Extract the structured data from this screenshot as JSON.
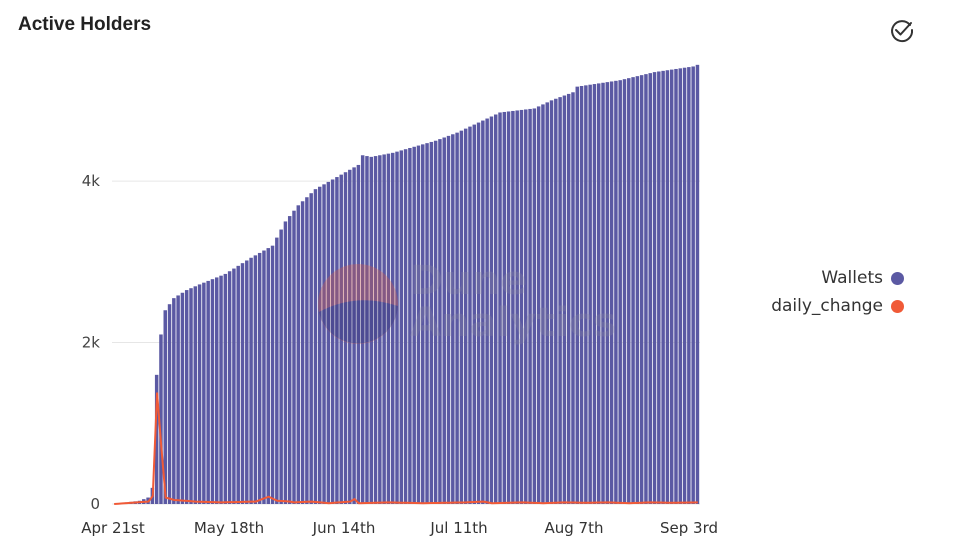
{
  "header": {
    "title": "Active Holders",
    "action_icon": "check-circle-icon"
  },
  "watermark": {
    "line1": "Dune",
    "line2": "Analytics"
  },
  "legend": [
    {
      "name": "Wallets",
      "color": "#5b59a3"
    },
    {
      "name": "daily_change",
      "color": "#f05a37"
    }
  ],
  "chart_data": {
    "type": "bar",
    "x_ticks": [
      "Apr 21st",
      "May 18th",
      "Jun 14th",
      "Jul 11th",
      "Aug 7th",
      "Sep 3rd"
    ],
    "y_ticks": [
      "0",
      "2k",
      "4k"
    ],
    "ylim": [
      0,
      5500
    ],
    "xlim": [
      "Apr 21st",
      "Sep 3rd"
    ],
    "grid": "horizontal",
    "legend_position": "right",
    "series": [
      {
        "name": "Wallets",
        "type": "bar",
        "color": "#5b59a3",
        "anchors": [
          [
            0,
            0
          ],
          [
            3,
            20
          ],
          [
            6,
            40
          ],
          [
            8,
            80
          ],
          [
            9,
            200
          ],
          [
            10,
            1600
          ],
          [
            11,
            2100
          ],
          [
            12,
            2400
          ],
          [
            14,
            2550
          ],
          [
            17,
            2650
          ],
          [
            20,
            2720
          ],
          [
            26,
            2850
          ],
          [
            32,
            3050
          ],
          [
            37,
            3200
          ],
          [
            40,
            3500
          ],
          [
            43,
            3700
          ],
          [
            47,
            3900
          ],
          [
            52,
            4050
          ],
          [
            57,
            4200
          ],
          [
            58,
            4320
          ],
          [
            60,
            4300
          ],
          [
            65,
            4350
          ],
          [
            75,
            4500
          ],
          [
            80,
            4600
          ],
          [
            86,
            4750
          ],
          [
            90,
            4850
          ],
          [
            98,
            4900
          ],
          [
            102,
            5000
          ],
          [
            107,
            5100
          ],
          [
            108,
            5170
          ],
          [
            118,
            5250
          ],
          [
            126,
            5350
          ],
          [
            135,
            5420
          ],
          [
            136,
            5440
          ]
        ]
      },
      {
        "name": "daily_change",
        "type": "line",
        "color": "#f05a37",
        "anchors": [
          [
            0,
            0
          ],
          [
            8,
            30
          ],
          [
            9,
            100
          ],
          [
            10,
            1380
          ],
          [
            11,
            700
          ],
          [
            12,
            80
          ],
          [
            14,
            50
          ],
          [
            19,
            30
          ],
          [
            25,
            20
          ],
          [
            33,
            30
          ],
          [
            36,
            90
          ],
          [
            38,
            40
          ],
          [
            41,
            30
          ],
          [
            42,
            20
          ],
          [
            46,
            30
          ],
          [
            50,
            10
          ],
          [
            55,
            30
          ],
          [
            56,
            60
          ],
          [
            57,
            10
          ],
          [
            64,
            20
          ],
          [
            72,
            10
          ],
          [
            82,
            20
          ],
          [
            86,
            30
          ],
          [
            88,
            10
          ],
          [
            95,
            20
          ],
          [
            100,
            10
          ],
          [
            105,
            20
          ],
          [
            110,
            15
          ],
          [
            115,
            20
          ],
          [
            120,
            10
          ],
          [
            125,
            20
          ],
          [
            130,
            15
          ],
          [
            136,
            20
          ]
        ]
      }
    ]
  }
}
